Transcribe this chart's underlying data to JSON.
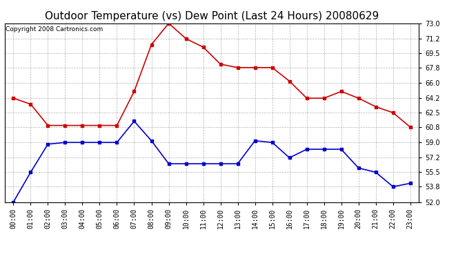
{
  "title": "Outdoor Temperature (vs) Dew Point (Last 24 Hours) 20080629",
  "copyright": "Copyright 2008 Cartronics.com",
  "hours": [
    "00:00",
    "01:00",
    "02:00",
    "03:00",
    "04:00",
    "05:00",
    "06:00",
    "07:00",
    "08:00",
    "09:00",
    "10:00",
    "11:00",
    "12:00",
    "13:00",
    "14:00",
    "15:00",
    "16:00",
    "17:00",
    "18:00",
    "19:00",
    "20:00",
    "21:00",
    "22:00",
    "23:00"
  ],
  "temp": [
    64.2,
    63.5,
    61.0,
    61.0,
    61.0,
    61.0,
    61.0,
    65.0,
    70.5,
    73.0,
    71.2,
    70.2,
    68.2,
    67.8,
    67.8,
    67.8,
    66.2,
    64.2,
    64.2,
    65.0,
    64.2,
    63.2,
    62.5,
    60.8
  ],
  "dew": [
    52.0,
    55.5,
    58.8,
    59.0,
    59.0,
    59.0,
    59.0,
    61.5,
    59.2,
    56.5,
    56.5,
    56.5,
    56.5,
    56.5,
    59.2,
    59.0,
    57.2,
    58.2,
    58.2,
    58.2,
    56.0,
    55.5,
    53.8,
    54.2
  ],
  "temp_color": "#cc0000",
  "dew_color": "#0000cc",
  "bg_color": "#ffffff",
  "grid_color": "#aaaaaa",
  "ylim": [
    52.0,
    73.0
  ],
  "yticks": [
    52.0,
    53.8,
    55.5,
    57.2,
    59.0,
    60.8,
    62.5,
    64.2,
    66.0,
    67.8,
    69.5,
    71.2,
    73.0
  ],
  "title_fontsize": 11,
  "copy_fontsize": 6.5,
  "tick_fontsize": 7,
  "marker": "s",
  "markersize": 3,
  "linewidth": 1.2
}
